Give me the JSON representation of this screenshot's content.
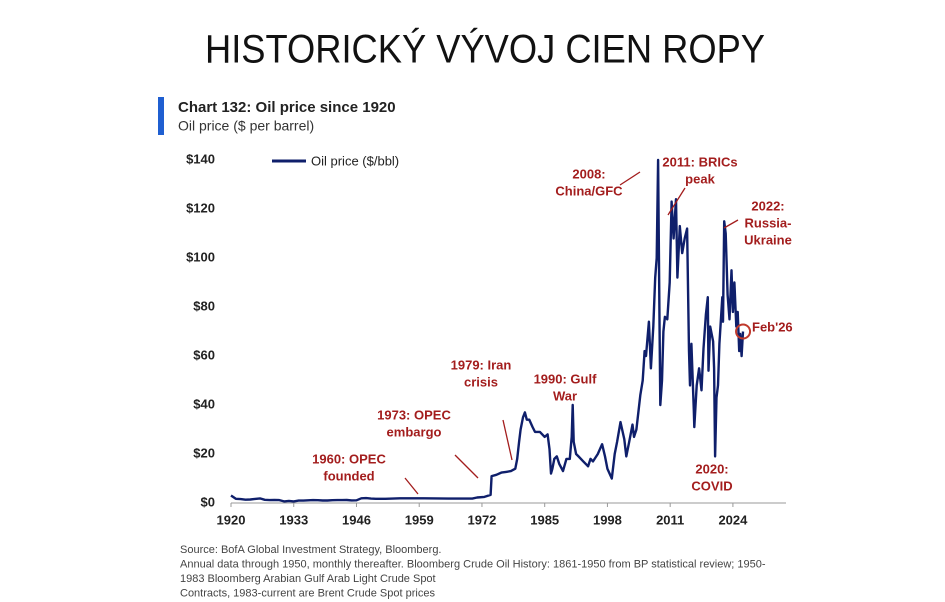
{
  "slide_title": "HISTORICKÝ VÝVOJ CIEN ROPY",
  "chart_data": {
    "type": "line",
    "title": "Chart 132: Oil price since 1920",
    "subtitle": "Oil price ($ per barrel)",
    "x": [
      1920,
      1921,
      1922,
      1923,
      1924,
      1925,
      1926,
      1927,
      1928,
      1929,
      1930,
      1931,
      1932,
      1933,
      1934,
      1935,
      1936,
      1937,
      1938,
      1939,
      1940,
      1941,
      1942,
      1943,
      1944,
      1945,
      1946,
      1947,
      1948,
      1949,
      1950,
      1952,
      1955,
      1957,
      1960,
      1965,
      1970,
      1971,
      1972.5,
      1973.8,
      1974,
      1975,
      1976,
      1977,
      1978,
      1978.9,
      1979.3,
      1979.7,
      1980,
      1980.5,
      1980.9,
      1981.3,
      1981.8,
      1982.5,
      1983,
      1983.5,
      1984,
      1984.5,
      1985,
      1985.6,
      1986,
      1986.3,
      1986.6,
      1987,
      1987.5,
      1988,
      1988.8,
      1989.5,
      1990.2,
      1990.6,
      1990.8,
      1991,
      1991.5,
      1992,
      1993,
      1994,
      1994.5,
      1995,
      1996,
      1996.9,
      1997.5,
      1998,
      1998.9,
      1999.5,
      2000,
      2000.7,
      2001.5,
      2001.9,
      2002.5,
      2003.2,
      2003.5,
      2004,
      2004.8,
      2005.3,
      2005.7,
      2006,
      2006.6,
      2007,
      2007.5,
      2007.9,
      2008.2,
      2008.5,
      2008.8,
      2008.95,
      2009.3,
      2009.6,
      2009.9,
      2010.4,
      2010.9,
      2011.3,
      2011.7,
      2012.2,
      2012.5,
      2013,
      2013.5,
      2014,
      2014.5,
      2014.9,
      2015.1,
      2015.4,
      2015.9,
      2016,
      2016.5,
      2017,
      2017.5,
      2017.9,
      2018.4,
      2018.8,
      2018.95,
      2019.3,
      2019.9,
      2020.1,
      2020.3,
      2020.6,
      2020.9,
      2021.2,
      2021.8,
      2021.95,
      2022.2,
      2022.5,
      2022.9,
      2023.3,
      2023.7,
      2024,
      2024.3,
      2024.7,
      2025,
      2025.3,
      2025.5,
      2025.8,
      2026.1
    ],
    "series": [
      {
        "name": "Oil price ($/bbl)",
        "color": "#0f1f6b",
        "values": [
          3.07,
          1.73,
          1.61,
          1.34,
          1.43,
          1.68,
          1.88,
          1.3,
          1.17,
          1.27,
          1.19,
          0.65,
          0.87,
          0.67,
          1,
          0.97,
          1.09,
          1.18,
          1.13,
          1.02,
          1.02,
          1.14,
          1.19,
          1.2,
          1.21,
          1.05,
          1.12,
          1.9,
          1.99,
          1.78,
          1.71,
          1.71,
          1.93,
          1.9,
          1.9,
          1.8,
          1.8,
          2.24,
          2.48,
          3.3,
          11,
          11.5,
          12.4,
          12.7,
          13,
          14,
          18,
          25,
          30,
          35,
          37,
          34,
          34,
          31,
          29,
          29,
          29,
          28,
          27,
          28,
          22,
          12,
          14,
          18,
          19,
          16,
          13,
          18,
          18,
          27,
          40,
          25,
          20,
          19,
          17,
          15,
          18,
          17,
          20,
          24,
          19,
          14,
          10,
          20,
          25,
          33,
          26,
          19,
          25,
          32,
          27,
          30,
          44,
          50,
          62,
          60,
          74,
          55,
          72,
          92,
          100,
          140,
          70,
          40,
          50,
          70,
          76,
          75,
          90,
          123,
          108,
          124,
          92,
          113,
          102,
          108,
          112,
          62,
          48,
          65,
          38,
          31,
          48,
          55,
          46,
          63,
          77,
          84,
          54,
          72,
          66,
          55,
          19,
          43,
          48,
          65,
          84,
          74,
          115,
          110,
          85,
          75,
          95,
          78,
          90,
          72,
          78,
          62,
          69,
          60,
          70
        ]
      }
    ],
    "xlim": [
      1920,
      2035
    ],
    "xticks": [
      1920,
      1933,
      1946,
      1959,
      1972,
      1985,
      1998,
      2011,
      2024
    ],
    "ylim": [
      0,
      140
    ],
    "yticks": [
      {
        "value": 0,
        "label": "$0"
      },
      {
        "value": 20,
        "label": "$20"
      },
      {
        "value": 40,
        "label": "$40"
      },
      {
        "value": 60,
        "label": "$60"
      },
      {
        "value": 80,
        "label": "$80"
      },
      {
        "value": 100,
        "label": "$100"
      },
      {
        "value": 120,
        "label": "$120"
      },
      {
        "value": 140,
        "label": "$140"
      }
    ],
    "grid": false,
    "legend": "top-left",
    "annotations": [
      {
        "lines": [
          "1960: OPEC",
          "founded"
        ]
      },
      {
        "lines": [
          "1973: OPEC",
          "embargo"
        ]
      },
      {
        "lines": [
          "1979: Iran",
          "crisis"
        ]
      },
      {
        "lines": [
          "1990: Gulf",
          "War"
        ]
      },
      {
        "lines": [
          "2008:",
          "China/GFC"
        ]
      },
      {
        "lines": [
          "2011: BRICs",
          "peak"
        ]
      },
      {
        "lines": [
          "2022:",
          "Russia-",
          "Ukraine"
        ]
      },
      {
        "lines": [
          "2020:",
          "COVID"
        ]
      },
      {
        "lines": [
          "Feb'26"
        ]
      }
    ],
    "source": [
      "Source: BofA Global Investment Strategy, Bloomberg.",
      "Annual data through 1950, monthly thereafter. Bloomberg Crude Oil History: 1861-1950 from BP statistical review; 1950-",
      "1983 Bloomberg Arabian Gulf Arab Light Crude Spot",
      "Contracts, 1983-current are Brent Crude Spot prices"
    ]
  }
}
